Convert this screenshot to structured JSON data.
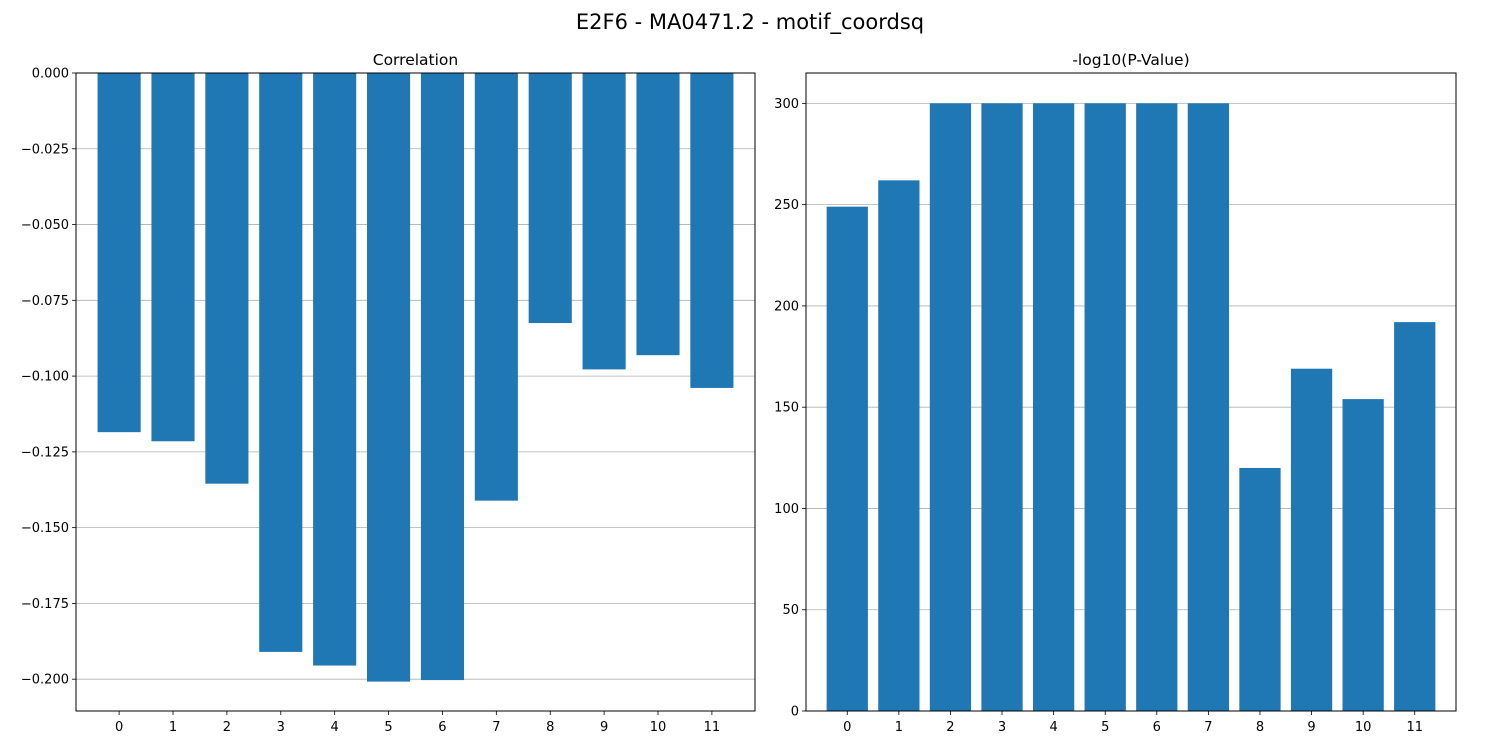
{
  "figure_title": "E2F6 - MA0471.2 - motif_coordsq",
  "chart_data": [
    {
      "type": "bar",
      "title": "Correlation",
      "xlabel": "",
      "ylabel": "",
      "categories": [
        "0",
        "1",
        "2",
        "3",
        "4",
        "5",
        "6",
        "7",
        "8",
        "9",
        "10",
        "11"
      ],
      "values": [
        -0.1185,
        -0.1215,
        -0.1355,
        -0.191,
        -0.1955,
        -0.2008,
        -0.2003,
        -0.1411,
        -0.0825,
        -0.0978,
        -0.0931,
        -0.1039
      ],
      "ylim": [
        -0.2105,
        0.0
      ],
      "yticks": [
        0.0,
        -0.025,
        -0.05,
        -0.075,
        -0.1,
        -0.125,
        -0.15,
        -0.175,
        -0.2
      ],
      "ytick_labels": [
        "0.000",
        "−0.025",
        "−0.050",
        "−0.075",
        "−0.100",
        "−0.125",
        "−0.150",
        "−0.175",
        "−0.200"
      ],
      "grid": "y",
      "color": "#1f77b4"
    },
    {
      "type": "bar",
      "title": "-log10(P-Value)",
      "xlabel": "",
      "ylabel": "",
      "categories": [
        "0",
        "1",
        "2",
        "3",
        "4",
        "5",
        "6",
        "7",
        "8",
        "9",
        "10",
        "11"
      ],
      "values": [
        249,
        262,
        300,
        300,
        300,
        300,
        300,
        300,
        120,
        169,
        154,
        192
      ],
      "ylim": [
        0,
        315
      ],
      "yticks": [
        0,
        50,
        100,
        150,
        200,
        250,
        300
      ],
      "ytick_labels": [
        "0",
        "50",
        "100",
        "150",
        "200",
        "250",
        "300"
      ],
      "grid": "y",
      "color": "#1f77b4"
    }
  ]
}
